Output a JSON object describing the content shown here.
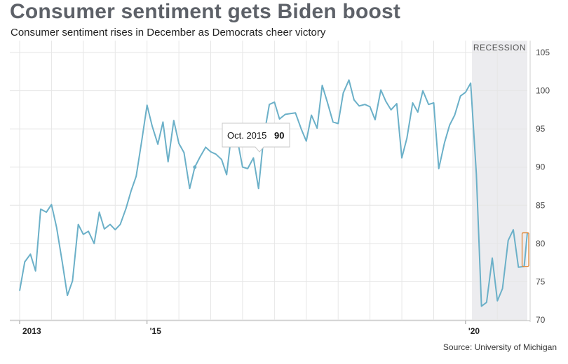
{
  "chart_data": {
    "type": "line",
    "title": "Consumer sentiment gets Biden boost",
    "subtitle": "Consumer sentiment rises in December as Democrats cheer victory",
    "source": "Source: University of Michigan",
    "xlabel": "",
    "ylabel": "",
    "ylim": [
      70,
      105
    ],
    "yticks": [
      70,
      75,
      80,
      85,
      90,
      95,
      100,
      105
    ],
    "xlim": [
      2013.0,
      2020.97
    ],
    "xticks": [
      {
        "value": 2013.0,
        "label": "2013"
      },
      {
        "value": 2015.0,
        "label": "'15"
      },
      {
        "value": 2020.0,
        "label": "'20"
      }
    ],
    "grid": true,
    "recession_band": {
      "label": "RECESSION",
      "start": 2020.1,
      "end": 2020.97
    },
    "tooltip": {
      "label": "Oct. 2015",
      "value": "90",
      "x": 2015.75,
      "y": 90
    },
    "highlight": {
      "x_start": 2020.91,
      "x_end": 2020.97,
      "y_low": 77,
      "y_high": 81.4
    },
    "series": [
      {
        "name": "Consumer sentiment",
        "color": "#6bb0c8",
        "points": [
          [
            2013.0,
            73.8
          ],
          [
            2013.08,
            77.6
          ],
          [
            2013.17,
            78.6
          ],
          [
            2013.25,
            76.4
          ],
          [
            2013.33,
            84.5
          ],
          [
            2013.42,
            84.1
          ],
          [
            2013.5,
            85.1
          ],
          [
            2013.58,
            82.1
          ],
          [
            2013.67,
            77.5
          ],
          [
            2013.75,
            73.2
          ],
          [
            2013.83,
            75.1
          ],
          [
            2013.92,
            82.5
          ],
          [
            2014.0,
            81.2
          ],
          [
            2014.08,
            81.6
          ],
          [
            2014.17,
            80.0
          ],
          [
            2014.25,
            84.1
          ],
          [
            2014.33,
            81.9
          ],
          [
            2014.42,
            82.5
          ],
          [
            2014.5,
            81.8
          ],
          [
            2014.58,
            82.5
          ],
          [
            2014.67,
            84.6
          ],
          [
            2014.75,
            86.9
          ],
          [
            2014.83,
            88.8
          ],
          [
            2014.92,
            93.6
          ],
          [
            2015.0,
            98.1
          ],
          [
            2015.08,
            95.4
          ],
          [
            2015.17,
            93.0
          ],
          [
            2015.25,
            95.9
          ],
          [
            2015.33,
            90.7
          ],
          [
            2015.42,
            96.1
          ],
          [
            2015.5,
            93.1
          ],
          [
            2015.58,
            91.9
          ],
          [
            2015.67,
            87.2
          ],
          [
            2015.75,
            90.0
          ],
          [
            2015.83,
            91.3
          ],
          [
            2015.92,
            92.6
          ],
          [
            2016.0,
            92.0
          ],
          [
            2016.08,
            91.7
          ],
          [
            2016.17,
            91.0
          ],
          [
            2016.25,
            89.0
          ],
          [
            2016.33,
            94.7
          ],
          [
            2016.42,
            93.5
          ],
          [
            2016.5,
            90.0
          ],
          [
            2016.58,
            89.8
          ],
          [
            2016.67,
            91.2
          ],
          [
            2016.75,
            87.2
          ],
          [
            2016.83,
            93.8
          ],
          [
            2016.92,
            98.2
          ],
          [
            2017.0,
            98.5
          ],
          [
            2017.08,
            96.3
          ],
          [
            2017.17,
            96.9
          ],
          [
            2017.25,
            97.0
          ],
          [
            2017.33,
            97.1
          ],
          [
            2017.42,
            95.0
          ],
          [
            2017.5,
            93.4
          ],
          [
            2017.58,
            96.8
          ],
          [
            2017.67,
            95.1
          ],
          [
            2017.75,
            100.7
          ],
          [
            2017.83,
            98.5
          ],
          [
            2017.92,
            95.9
          ],
          [
            2018.0,
            95.7
          ],
          [
            2018.08,
            99.7
          ],
          [
            2018.17,
            101.4
          ],
          [
            2018.25,
            98.8
          ],
          [
            2018.33,
            98.0
          ],
          [
            2018.42,
            98.2
          ],
          [
            2018.5,
            97.9
          ],
          [
            2018.58,
            96.2
          ],
          [
            2018.67,
            100.1
          ],
          [
            2018.75,
            98.6
          ],
          [
            2018.83,
            97.5
          ],
          [
            2018.92,
            98.3
          ],
          [
            2019.0,
            91.2
          ],
          [
            2019.08,
            93.8
          ],
          [
            2019.17,
            98.4
          ],
          [
            2019.25,
            97.2
          ],
          [
            2019.33,
            100.0
          ],
          [
            2019.42,
            98.2
          ],
          [
            2019.5,
            98.4
          ],
          [
            2019.58,
            89.8
          ],
          [
            2019.67,
            93.2
          ],
          [
            2019.75,
            95.5
          ],
          [
            2019.83,
            96.8
          ],
          [
            2019.92,
            99.3
          ],
          [
            2020.0,
            99.8
          ],
          [
            2020.08,
            101.0
          ],
          [
            2020.17,
            89.1
          ],
          [
            2020.25,
            71.8
          ],
          [
            2020.33,
            72.3
          ],
          [
            2020.42,
            78.1
          ],
          [
            2020.5,
            72.5
          ],
          [
            2020.58,
            74.1
          ],
          [
            2020.67,
            80.4
          ],
          [
            2020.75,
            81.8
          ],
          [
            2020.83,
            76.9
          ],
          [
            2020.92,
            77.0
          ],
          [
            2020.97,
            81.4
          ]
        ]
      }
    ]
  }
}
